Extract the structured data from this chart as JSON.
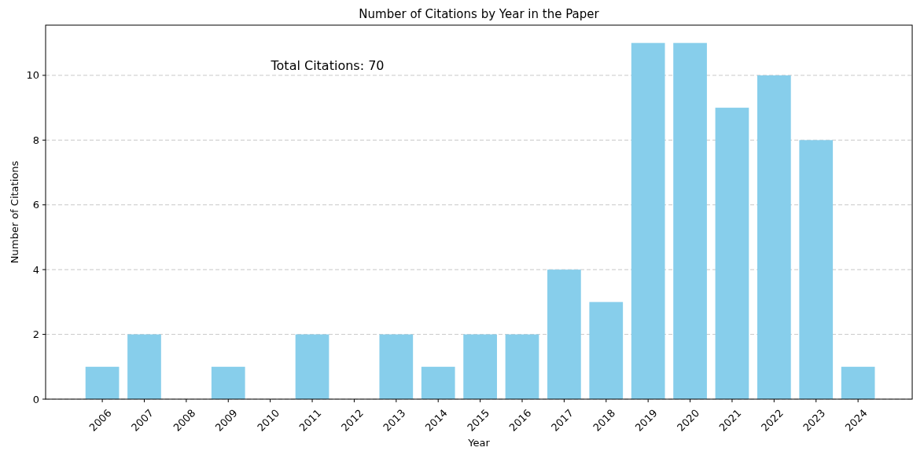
{
  "chart_data": {
    "type": "bar",
    "title": "Number of Citations by Year in the Paper",
    "xlabel": "Year",
    "ylabel": "Number of Citations",
    "categories": [
      "2006",
      "2007",
      "2008",
      "2009",
      "2010",
      "2011",
      "2012",
      "2013",
      "2014",
      "2015",
      "2016",
      "2017",
      "2018",
      "2019",
      "2020",
      "2021",
      "2022",
      "2023",
      "2024"
    ],
    "values": [
      1,
      2,
      0,
      1,
      0,
      2,
      0,
      2,
      1,
      2,
      2,
      4,
      3,
      11,
      11,
      9,
      10,
      8,
      1
    ],
    "color": "#87ceeb",
    "ylim": [
      0,
      11.55
    ],
    "yticks": [
      0,
      2,
      4,
      6,
      8,
      10
    ],
    "grid": "y",
    "annotations": [
      "Total Citations: 70"
    ]
  }
}
